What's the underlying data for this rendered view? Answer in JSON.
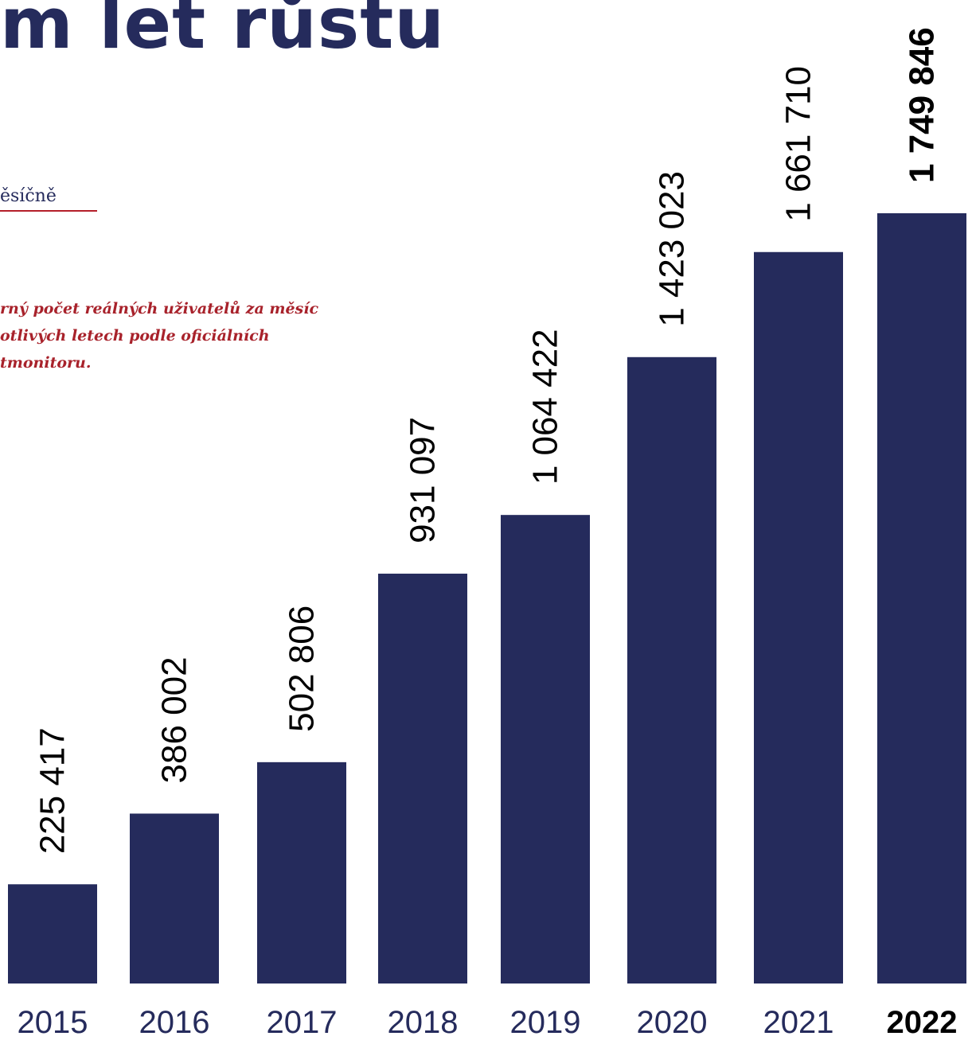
{
  "title": "m let růstu",
  "subheading": "ěsíčně",
  "note_lines": [
    "rný počet reálných uživatelů za měsíc",
    "otlivých letech podle oficiálních",
    "tmonitoru."
  ],
  "colors": {
    "bar": "#252b5c",
    "accent": "#b51f2a",
    "note": "#a8222b"
  },
  "chart_data": {
    "type": "bar",
    "orientation": "vertical",
    "categories": [
      "2015",
      "2016",
      "2017",
      "2018",
      "2019",
      "2020",
      "2021",
      "2022"
    ],
    "values": [
      225417,
      386002,
      502806,
      931097,
      1064422,
      1423023,
      1661710,
      1749846
    ],
    "value_labels": [
      "225 417",
      "386 002",
      "502 806",
      "931 097",
      "1 064 422",
      "1 423 023",
      "1 661 710",
      "1 749 846"
    ],
    "highlight_category": "2022",
    "value_label_rotation": "vertical",
    "xlabel": "",
    "ylabel": "",
    "grid": false,
    "legend": "none"
  }
}
